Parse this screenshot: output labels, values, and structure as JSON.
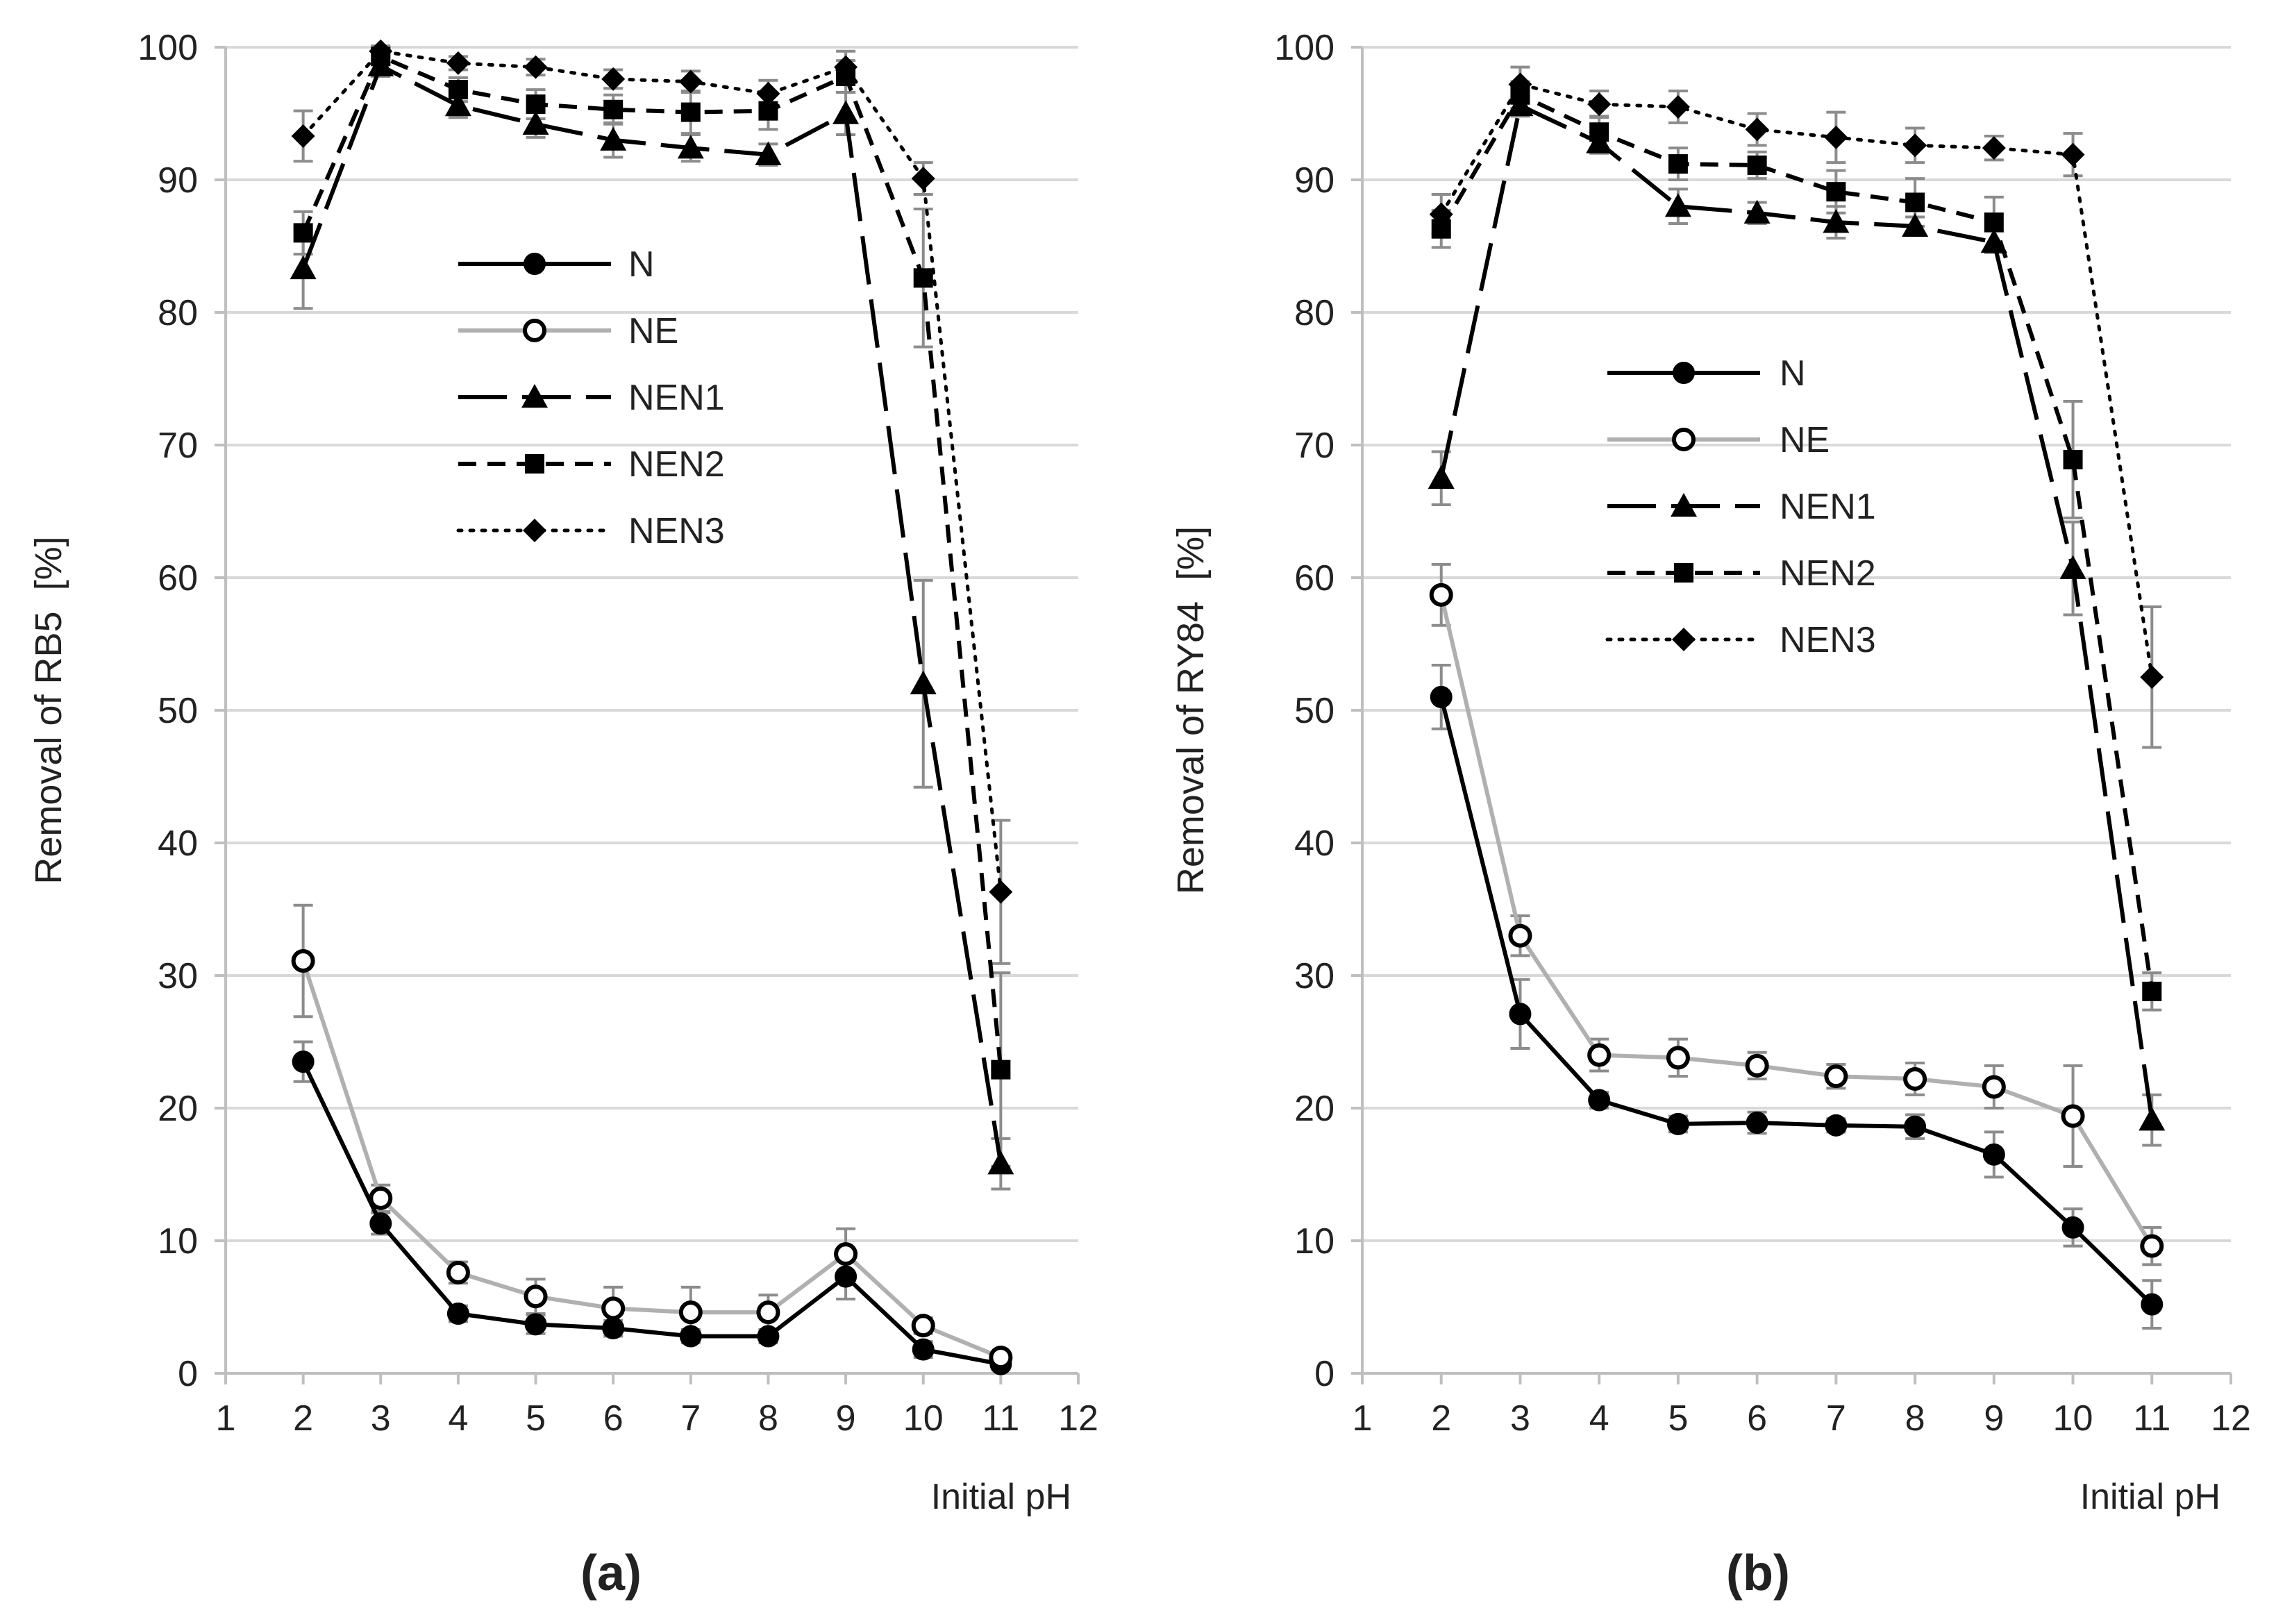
{
  "chart_data": [
    {
      "type": "line",
      "panel_label": "(a)",
      "xlabel": "Initial pH",
      "ylabel": "Removal of RB5  [%]",
      "xlim": [
        1,
        12
      ],
      "ylim": [
        0,
        100
      ],
      "x_ticks": [
        1,
        2,
        3,
        4,
        5,
        6,
        7,
        8,
        9,
        10,
        11,
        12
      ],
      "y_ticks": [
        0,
        10,
        20,
        30,
        40,
        50,
        60,
        70,
        80,
        90,
        100
      ],
      "grid": "horizontal",
      "legend": "upper-center",
      "x": [
        2,
        3,
        4,
        5,
        6,
        7,
        8,
        9,
        10,
        11
      ],
      "series": [
        {
          "name": "N",
          "marker": "filled-circle",
          "line": "solid",
          "color": "#000000",
          "values": [
            23.5,
            11.3,
            4.5,
            3.7,
            3.4,
            2.8,
            2.8,
            7.3,
            1.8,
            0.7
          ],
          "errors": [
            1.5,
            0.8,
            0.6,
            0.7,
            0.6,
            0.5,
            0.5,
            1.7,
            0.6,
            0.4
          ]
        },
        {
          "name": "NE",
          "marker": "open-circle",
          "line": "solid",
          "color": "#b0b0b0",
          "values": [
            31.1,
            13.2,
            7.6,
            5.8,
            4.9,
            4.6,
            4.6,
            9.0,
            3.6,
            1.2
          ],
          "errors": [
            4.2,
            1.0,
            0.8,
            1.3,
            1.6,
            1.9,
            1.3,
            1.9,
            0.6,
            0.4
          ]
        },
        {
          "name": "NEN1",
          "marker": "filled-triangle",
          "line": "longdash",
          "color": "#000000",
          "values": [
            83.3,
            98.6,
            95.6,
            94.2,
            93.0,
            92.4,
            91.9,
            95.0,
            52.0,
            15.8
          ],
          "errors": [
            3.0,
            0.8,
            0.9,
            1.0,
            1.3,
            1.0,
            0.8,
            1.6,
            7.8,
            1.9
          ]
        },
        {
          "name": "NEN2",
          "marker": "filled-square",
          "line": "dash",
          "color": "#000000",
          "values": [
            86.0,
            99.3,
            96.8,
            95.7,
            95.3,
            95.1,
            95.2,
            97.8,
            82.6,
            22.9
          ],
          "errors": [
            1.6,
            0.6,
            0.9,
            1.1,
            1.1,
            1.6,
            1.4,
            1.2,
            5.2,
            7.3
          ]
        },
        {
          "name": "NEN3",
          "marker": "filled-diamond",
          "line": "dot",
          "color": "#000000",
          "values": [
            93.3,
            99.7,
            98.8,
            98.5,
            97.6,
            97.4,
            96.5,
            98.5,
            90.1,
            36.3
          ],
          "errors": [
            1.9,
            0.4,
            0.5,
            0.6,
            0.7,
            0.8,
            1.0,
            1.2,
            1.2,
            5.4
          ]
        }
      ]
    },
    {
      "type": "line",
      "panel_label": "(b)",
      "xlabel": "Initial pH",
      "ylabel": "Removal of RY84  [%]",
      "xlim": [
        1,
        12
      ],
      "ylim": [
        0,
        100
      ],
      "x_ticks": [
        1,
        2,
        3,
        4,
        5,
        6,
        7,
        8,
        9,
        10,
        11,
        12
      ],
      "y_ticks": [
        0,
        10,
        20,
        30,
        40,
        50,
        60,
        70,
        80,
        90,
        100
      ],
      "grid": "horizontal",
      "legend": "center-left",
      "x": [
        2,
        3,
        4,
        5,
        6,
        7,
        8,
        9,
        10,
        11
      ],
      "series": [
        {
          "name": "N",
          "marker": "filled-circle",
          "line": "solid",
          "color": "#000000",
          "values": [
            51.0,
            27.1,
            20.6,
            18.8,
            18.9,
            18.7,
            18.6,
            16.5,
            11.0,
            5.2
          ],
          "errors": [
            2.4,
            2.6,
            0.6,
            0.6,
            0.8,
            0.5,
            0.9,
            1.7,
            1.4,
            1.8
          ]
        },
        {
          "name": "NE",
          "marker": "open-circle",
          "line": "solid",
          "color": "#b0b0b0",
          "values": [
            58.7,
            33.0,
            24.0,
            23.8,
            23.2,
            22.4,
            22.2,
            21.6,
            19.4,
            9.6
          ],
          "errors": [
            2.3,
            1.5,
            1.2,
            1.4,
            1.0,
            0.9,
            1.2,
            1.6,
            3.8,
            1.4
          ]
        },
        {
          "name": "NEN1",
          "marker": "filled-triangle",
          "line": "longdash",
          "color": "#000000",
          "values": [
            67.5,
            95.6,
            92.8,
            88.0,
            87.5,
            86.8,
            86.5,
            85.3,
            60.7,
            19.1
          ],
          "errors": [
            2.0,
            0.8,
            0.8,
            1.3,
            0.8,
            1.2,
            0.7,
            0.8,
            3.5,
            1.9
          ]
        },
        {
          "name": "NEN2",
          "marker": "filled-square",
          "line": "dash",
          "color": "#000000",
          "values": [
            86.3,
            96.4,
            93.6,
            91.2,
            91.1,
            89.1,
            88.3,
            86.8,
            68.9,
            28.8
          ],
          "errors": [
            1.4,
            1.0,
            1.2,
            1.2,
            1.0,
            1.6,
            1.8,
            1.9,
            4.4,
            1.4
          ]
        },
        {
          "name": "NEN3",
          "marker": "filled-diamond",
          "line": "dot",
          "color": "#000000",
          "values": [
            87.4,
            97.2,
            95.7,
            95.5,
            93.8,
            93.2,
            92.6,
            92.4,
            91.9,
            52.5
          ],
          "errors": [
            1.5,
            1.3,
            1.0,
            1.2,
            1.2,
            1.9,
            1.3,
            0.9,
            1.6,
            5.3
          ]
        }
      ]
    }
  ]
}
